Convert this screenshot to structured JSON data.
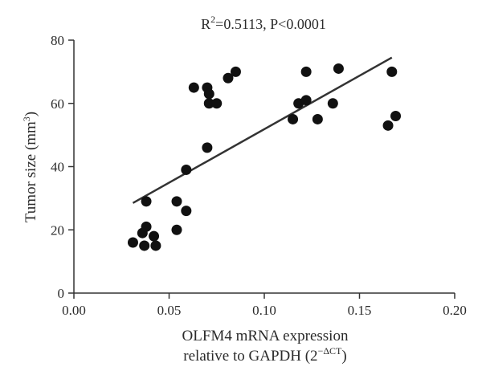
{
  "chart_data": {
    "type": "scatter",
    "title_main": "R",
    "title_sup": "2",
    "title_rest": "=0.5113, P<0.0001",
    "xlabel_line1": "OLFM4 mRNA expression",
    "xlabel_line2_main": "relative to GAPDH (2",
    "xlabel_line2_sup": "−ΔCT",
    "xlabel_line2_end": ")",
    "ylabel_main": "Tumor size (mm",
    "ylabel_sup": "3",
    "ylabel_end": ")",
    "xlim": [
      0,
      0.2
    ],
    "ylim": [
      0,
      80
    ],
    "x_ticks": [
      "0.00",
      "0.05",
      "0.10",
      "0.15",
      "0.20"
    ],
    "y_ticks": [
      "0",
      "20",
      "40",
      "60",
      "80"
    ],
    "points": [
      {
        "x": 0.031,
        "y": 16
      },
      {
        "x": 0.036,
        "y": 19
      },
      {
        "x": 0.037,
        "y": 15
      },
      {
        "x": 0.038,
        "y": 21
      },
      {
        "x": 0.038,
        "y": 29
      },
      {
        "x": 0.042,
        "y": 18
      },
      {
        "x": 0.043,
        "y": 15
      },
      {
        "x": 0.054,
        "y": 29
      },
      {
        "x": 0.054,
        "y": 20
      },
      {
        "x": 0.059,
        "y": 26
      },
      {
        "x": 0.059,
        "y": 39
      },
      {
        "x": 0.063,
        "y": 65
      },
      {
        "x": 0.07,
        "y": 46
      },
      {
        "x": 0.07,
        "y": 65
      },
      {
        "x": 0.071,
        "y": 63
      },
      {
        "x": 0.071,
        "y": 60
      },
      {
        "x": 0.075,
        "y": 60
      },
      {
        "x": 0.081,
        "y": 68
      },
      {
        "x": 0.085,
        "y": 70
      },
      {
        "x": 0.115,
        "y": 55
      },
      {
        "x": 0.118,
        "y": 60
      },
      {
        "x": 0.122,
        "y": 61
      },
      {
        "x": 0.122,
        "y": 70
      },
      {
        "x": 0.128,
        "y": 55
      },
      {
        "x": 0.136,
        "y": 60
      },
      {
        "x": 0.139,
        "y": 71
      },
      {
        "x": 0.165,
        "y": 53
      },
      {
        "x": 0.167,
        "y": 70
      },
      {
        "x": 0.169,
        "y": 56
      }
    ],
    "trendline": {
      "x": [
        0.031,
        0.167
      ],
      "y": [
        28.5,
        74.5
      ]
    },
    "colors": {
      "points": "#111111",
      "line": "#333333",
      "axis": "#333333"
    }
  }
}
